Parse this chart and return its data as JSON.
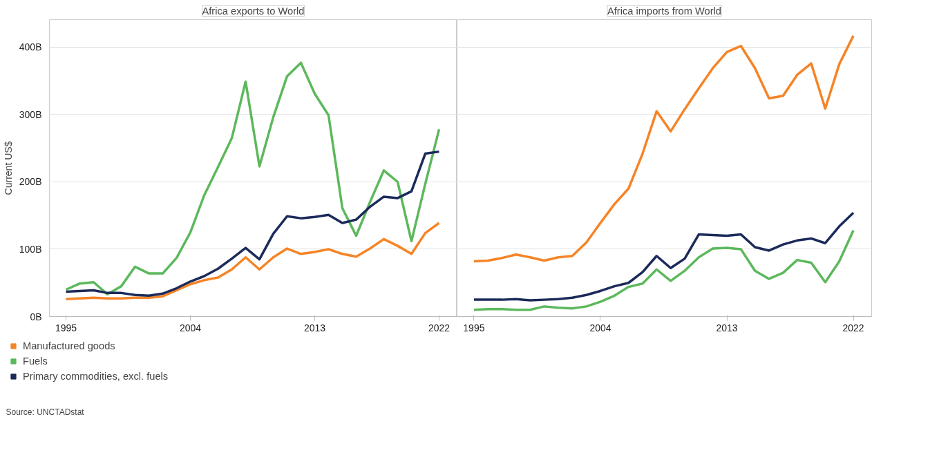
{
  "chart_data": [
    {
      "type": "line",
      "title": "Africa exports to World",
      "ylabel": "Current US$",
      "x": [
        1995,
        1996,
        1997,
        1998,
        1999,
        2000,
        2001,
        2002,
        2003,
        2004,
        2005,
        2006,
        2007,
        2008,
        2009,
        2010,
        2011,
        2012,
        2013,
        2014,
        2015,
        2016,
        2017,
        2018,
        2019,
        2020,
        2021,
        2022
      ],
      "series": [
        {
          "name": "Manufactured goods",
          "color": "#f58426",
          "values": [
            26,
            27,
            28,
            27,
            27,
            28,
            28,
            30,
            39,
            48,
            54,
            58,
            70,
            88,
            70,
            88,
            101,
            93,
            96,
            100,
            93,
            89,
            101,
            115,
            105,
            93,
            124,
            139
          ]
        },
        {
          "name": "Fuels",
          "color": "#5cb85c",
          "values": [
            40,
            49,
            51,
            33,
            45,
            74,
            64,
            64,
            87,
            125,
            180,
            222,
            265,
            349,
            223,
            296,
            357,
            377,
            331,
            299,
            161,
            120,
            170,
            217,
            200,
            112,
            197,
            278
          ]
        },
        {
          "name": "Primary commodities, excl. fuels",
          "color": "#1b2a5a",
          "values": [
            37,
            38,
            39,
            35,
            35,
            32,
            31,
            34,
            42,
            52,
            60,
            71,
            86,
            102,
            85,
            123,
            149,
            146,
            148,
            151,
            139,
            144,
            163,
            178,
            176,
            186,
            242,
            245
          ]
        }
      ],
      "xlim": [
        1993.8,
        2023.3
      ],
      "xticks": [
        1995,
        2004,
        2013,
        2022
      ],
      "ylim": [
        0,
        441
      ],
      "yticks": [
        {
          "value": 0,
          "label": "0B"
        },
        {
          "value": 100,
          "label": "100B"
        },
        {
          "value": 200,
          "label": "200B"
        },
        {
          "value": 300,
          "label": "300B"
        },
        {
          "value": 400,
          "label": "400B"
        }
      ],
      "grid": "y",
      "legend": "bottom",
      "annotations": [
        "Source: UNCTADstat"
      ]
    },
    {
      "type": "line",
      "title": "Africa imports from World",
      "x": [
        1995,
        1996,
        1997,
        1998,
        1999,
        2000,
        2001,
        2002,
        2003,
        2004,
        2005,
        2006,
        2007,
        2008,
        2009,
        2010,
        2011,
        2012,
        2013,
        2014,
        2015,
        2016,
        2017,
        2018,
        2019,
        2020,
        2021,
        2022
      ],
      "series": [
        {
          "color": "#f58426",
          "values": [
            82,
            83,
            87,
            92,
            88,
            83,
            88,
            90,
            110,
            139,
            167,
            190,
            242,
            305,
            275,
            308,
            339,
            369,
            393,
            402,
            369,
            324,
            328,
            359,
            376,
            309,
            375,
            417
          ]
        },
        {
          "color": "#5cb85c",
          "values": [
            10,
            11,
            11,
            10,
            10,
            15,
            13,
            12,
            15,
            22,
            31,
            44,
            49,
            70,
            53,
            68,
            88,
            101,
            102,
            100,
            68,
            56,
            65,
            84,
            80,
            51,
            82,
            128
          ]
        },
        {
          "color": "#1b2a5a",
          "values": [
            25,
            25,
            25,
            26,
            24,
            25,
            26,
            28,
            32,
            38,
            45,
            50,
            66,
            90,
            72,
            86,
            122,
            121,
            120,
            122,
            103,
            98,
            107,
            113,
            116,
            109,
            134,
            154
          ]
        }
      ],
      "xlim": [
        1993.8,
        2023.3
      ],
      "xticks": [
        1995,
        2004,
        2013,
        2022
      ],
      "ylim": [
        0,
        441
      ],
      "yticks": [
        0,
        100,
        200,
        300,
        400
      ],
      "grid": "y",
      "tick_labels": "x"
    }
  ]
}
